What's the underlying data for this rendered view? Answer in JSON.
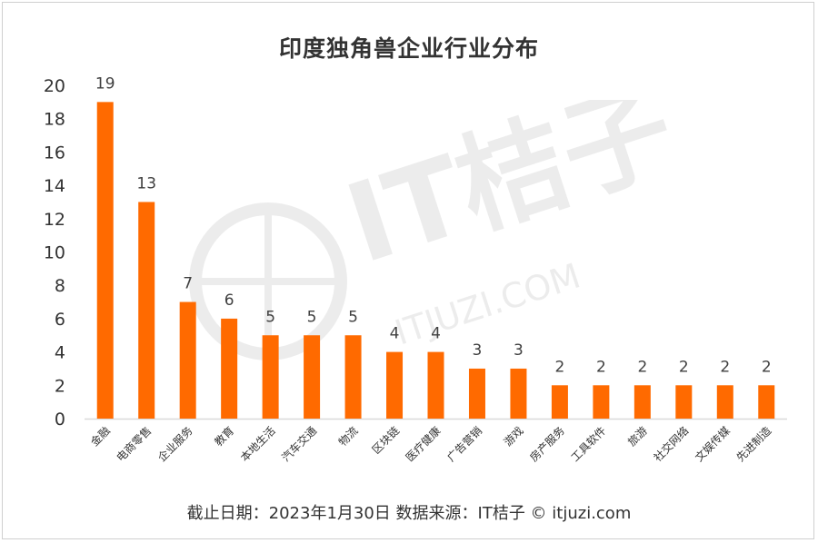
{
  "title": "印度独角兽企业行业分布",
  "footer": "截止日期：2023年1月30日     数据来源：IT桔子 © itjuzi.com",
  "watermark": {
    "brand": "IT桔子",
    "url": "ITJUZI.COM"
  },
  "colors": {
    "bar": "#ff6a00",
    "axis": "#d9d9d9",
    "text": "#333333"
  },
  "chart_data": {
    "type": "bar",
    "title": "印度独角兽企业行业分布",
    "xlabel": "",
    "ylabel": "",
    "ylim": [
      0,
      20
    ],
    "yticks": [
      0,
      2,
      4,
      6,
      8,
      10,
      12,
      14,
      16,
      18,
      20
    ],
    "grid": false,
    "categories": [
      "金融",
      "电商零售",
      "企业服务",
      "教育",
      "本地生活",
      "汽车交通",
      "物流",
      "区块链",
      "医疗健康",
      "广告营销",
      "游戏",
      "房产服务",
      "工具软件",
      "旅游",
      "社交网络",
      "文娱传媒",
      "先进制造"
    ],
    "values": [
      19,
      13,
      7,
      6,
      5,
      5,
      5,
      4,
      4,
      3,
      3,
      2,
      2,
      2,
      2,
      2,
      2
    ]
  }
}
